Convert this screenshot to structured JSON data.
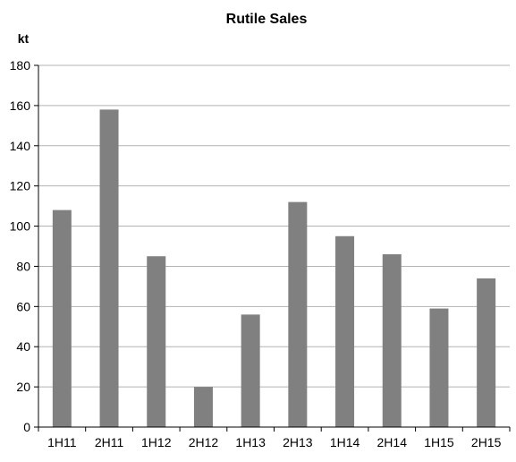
{
  "chart_data": {
    "type": "bar",
    "title": "Rutile Sales",
    "ylabel": "kt",
    "xlabel": "",
    "categories": [
      "1H11",
      "2H11",
      "1H12",
      "2H12",
      "1H13",
      "2H13",
      "1H14",
      "2H14",
      "1H15",
      "2H15"
    ],
    "values": [
      108,
      158,
      85,
      20,
      56,
      112,
      95,
      86,
      59,
      74
    ],
    "ylim": [
      0,
      180
    ],
    "yticks": [
      "0",
      "20",
      "40",
      "60",
      "80",
      "100",
      "120",
      "140",
      "160",
      "180"
    ],
    "grid": true,
    "legend": "none",
    "bar_color": "#808080",
    "grid_color": "#b3b3b3"
  }
}
